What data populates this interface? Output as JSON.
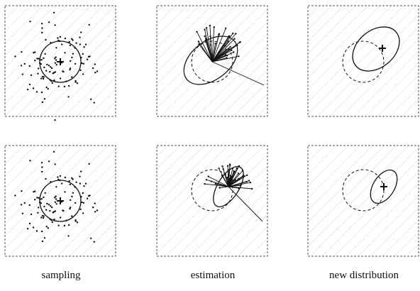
{
  "captions": {
    "sampling": "sampling",
    "estimation": "estimation",
    "new_distribution": "new distribution"
  },
  "colors": {
    "ink": "#111111",
    "hatch": "#9a9a9a",
    "frame": "#555555"
  },
  "rows": [
    {
      "row": "top",
      "estimate_ellipse": "wide, tilted",
      "new_distribution": "large ellipse"
    },
    {
      "row": "bottom",
      "estimate_ellipse": "narrow, tilted",
      "new_distribution": "small ellipse"
    }
  ]
}
